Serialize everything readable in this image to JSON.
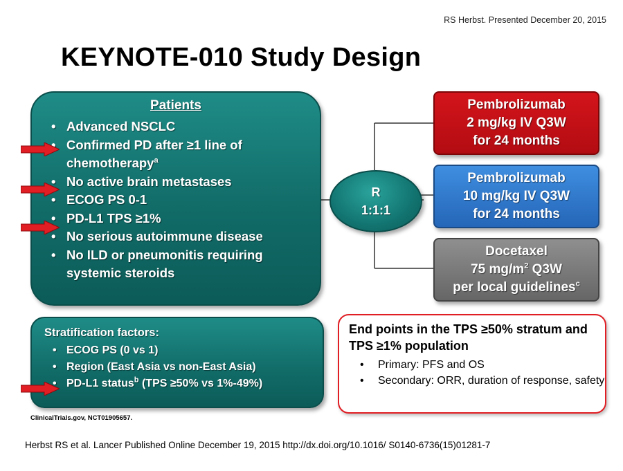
{
  "credit": "RS Herbst. Presented December 20, 2015",
  "title": "KEYNOTE-010 Study Design",
  "patients": {
    "header": "Patients",
    "items": [
      {
        "text": "Advanced NSCLC",
        "sup": "",
        "text2": ""
      },
      {
        "text": "Confirmed PD after ≥1 line of chemotherapy",
        "sup": "a",
        "text2": ""
      },
      {
        "text": "No active brain metastases",
        "sup": "",
        "text2": ""
      },
      {
        "text": "ECOG PS 0-1",
        "sup": "",
        "text2": ""
      },
      {
        "text": "PD-L1 TPS ≥1%",
        "sup": "",
        "text2": ""
      },
      {
        "text": "No serious autoimmune disease",
        "sup": "",
        "text2": ""
      },
      {
        "text": "No ILD or pneumonitis requiring systemic steroids",
        "sup": "",
        "text2": ""
      }
    ]
  },
  "stratification": {
    "header": "Stratification factors:",
    "items": [
      {
        "text": "ECOG PS (0 vs 1)",
        "sup": "",
        "text2": ""
      },
      {
        "text": "Region (East Asia vs non-East Asia)",
        "sup": "",
        "text2": ""
      },
      {
        "text": "PD-L1 status",
        "sup": "b",
        "text2": " (TPS ≥50% vs 1%-49%)"
      }
    ]
  },
  "randomization": {
    "line1": "R",
    "line2": "1:1:1"
  },
  "arms": [
    {
      "line1": "Pembrolizumab",
      "line2": "2 mg/kg IV Q3W",
      "line3": "for 24 months",
      "line3_sup": "",
      "color": "#c8111a"
    },
    {
      "line1": "Pembrolizumab",
      "line2": "10 mg/kg IV Q3W",
      "line3": "for 24 months",
      "line3_sup": "",
      "color": "#2f7bd0"
    },
    {
      "line1": "Docetaxel",
      "line2_a": "75 mg/m",
      "line2_sup": "2",
      "line2_b": " Q3W",
      "line3": "per local guidelines",
      "line3_sup": "c",
      "color": "#7a7a7a"
    }
  ],
  "endpoints": {
    "header": "End points in the TPS ≥50% stratum and TPS ≥1% population",
    "items": [
      {
        "text": "Primary: PFS and OS"
      },
      {
        "text": "Secondary: ORR, duration of response, safety"
      }
    ]
  },
  "footnote": "ClinicalTrials.gov,  NCT01905657.",
  "reference": "Herbst RS et al. Lancer Published Online December 19, 2015 http://dx.doi.org/10.1016/ S0140-6736(15)01281-7",
  "colors": {
    "teal": "#127470",
    "arrow_red": "#e01e24",
    "endpoint_border": "#e01e24"
  }
}
